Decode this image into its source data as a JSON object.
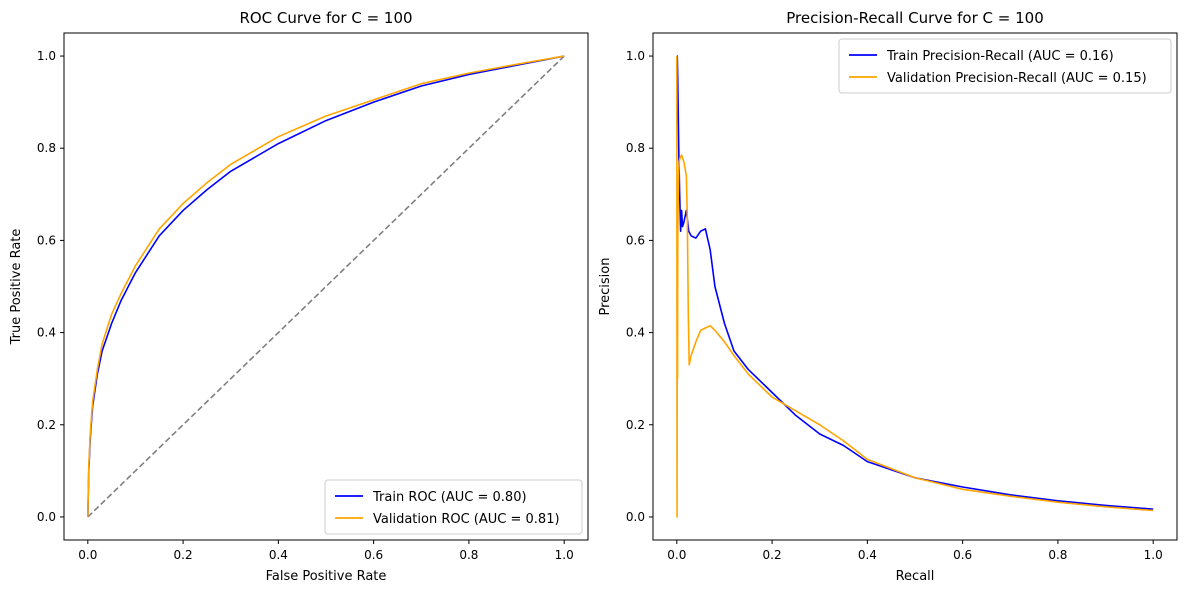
{
  "chart_data": [
    {
      "type": "line",
      "title": "ROC Curve for C = 100",
      "xlabel": "False Positive Rate",
      "ylabel": "True Positive Rate",
      "xlim": [
        -0.05,
        1.05
      ],
      "ylim": [
        -0.05,
        1.05
      ],
      "xticks": [
        0.0,
        0.2,
        0.4,
        0.6,
        0.8,
        1.0
      ],
      "yticks": [
        0.0,
        0.2,
        0.4,
        0.6,
        0.8,
        1.0
      ],
      "tick_labels_x": [
        "0.0",
        "0.2",
        "0.4",
        "0.6",
        "0.8",
        "1.0"
      ],
      "tick_labels_y": [
        "0.0",
        "0.2",
        "0.4",
        "0.6",
        "0.8",
        "1.0"
      ],
      "grid": false,
      "legend": "bottom-right",
      "series": [
        {
          "name": "Train ROC (AUC = 0.80)",
          "color": "#0000ff",
          "x": [
            0,
            0.002,
            0.005,
            0.01,
            0.02,
            0.03,
            0.05,
            0.07,
            0.1,
            0.15,
            0.2,
            0.25,
            0.3,
            0.4,
            0.5,
            0.6,
            0.7,
            0.8,
            0.9,
            1.0
          ],
          "y": [
            0,
            0.1,
            0.17,
            0.24,
            0.31,
            0.36,
            0.42,
            0.47,
            0.53,
            0.61,
            0.665,
            0.71,
            0.75,
            0.81,
            0.86,
            0.9,
            0.935,
            0.96,
            0.98,
            1.0
          ]
        },
        {
          "name": "Validation ROC (AUC = 0.81)",
          "color": "#ffa500",
          "x": [
            0,
            0.002,
            0.005,
            0.01,
            0.02,
            0.03,
            0.05,
            0.07,
            0.1,
            0.15,
            0.2,
            0.25,
            0.3,
            0.4,
            0.5,
            0.6,
            0.7,
            0.8,
            0.9,
            1.0
          ],
          "y": [
            0,
            0.11,
            0.18,
            0.25,
            0.32,
            0.375,
            0.44,
            0.485,
            0.545,
            0.625,
            0.68,
            0.725,
            0.765,
            0.825,
            0.87,
            0.905,
            0.94,
            0.963,
            0.982,
            1.0
          ]
        },
        {
          "name": "",
          "color": "#808080",
          "dashed": true,
          "x": [
            0,
            1
          ],
          "y": [
            0,
            1
          ]
        }
      ]
    },
    {
      "type": "line",
      "title": "Precision-Recall Curve for C = 100",
      "xlabel": "Recall",
      "ylabel": "Precision",
      "xlim": [
        -0.05,
        1.05
      ],
      "ylim": [
        -0.05,
        1.05
      ],
      "xticks": [
        0.0,
        0.2,
        0.4,
        0.6,
        0.8,
        1.0
      ],
      "yticks": [
        0.0,
        0.2,
        0.4,
        0.6,
        0.8,
        1.0
      ],
      "tick_labels_x": [
        "0.0",
        "0.2",
        "0.4",
        "0.6",
        "0.8",
        "1.0"
      ],
      "tick_labels_y": [
        "0.0",
        "0.2",
        "0.4",
        "0.6",
        "0.8",
        "1.0"
      ],
      "grid": false,
      "legend": "top-right",
      "series": [
        {
          "name": "Train Precision-Recall (AUC = 0.16)",
          "color": "#0000ff",
          "x": [
            0,
            0.001,
            0.002,
            0.004,
            0.006,
            0.008,
            0.01,
            0.012,
            0.015,
            0.02,
            0.025,
            0.03,
            0.04,
            0.05,
            0.06,
            0.07,
            0.08,
            0.1,
            0.12,
            0.15,
            0.2,
            0.25,
            0.3,
            0.35,
            0.4,
            0.5,
            0.6,
            0.7,
            0.8,
            0.9,
            1.0
          ],
          "y": [
            1.0,
            1.0,
            0.95,
            0.8,
            0.7,
            0.62,
            0.665,
            0.63,
            0.64,
            0.665,
            0.62,
            0.61,
            0.605,
            0.62,
            0.625,
            0.58,
            0.5,
            0.42,
            0.36,
            0.32,
            0.27,
            0.22,
            0.18,
            0.155,
            0.12,
            0.085,
            0.065,
            0.048,
            0.035,
            0.025,
            0.017
          ]
        },
        {
          "name": "Validation Precision-Recall (AUC = 0.15)",
          "color": "#ffa500",
          "x": [
            0,
            0.0005,
            0.001,
            0.0015,
            0.002,
            0.003,
            0.004,
            0.005,
            0.007,
            0.01,
            0.015,
            0.02,
            0.022,
            0.024,
            0.026,
            0.03,
            0.04,
            0.05,
            0.06,
            0.07,
            0.08,
            0.1,
            0.12,
            0.15,
            0.2,
            0.25,
            0.3,
            0.35,
            0.4,
            0.5,
            0.6,
            0.7,
            0.8,
            0.9,
            1.0
          ],
          "y": [
            1.0,
            0.0,
            0.5,
            0.3,
            0.6,
            0.7,
            0.75,
            0.77,
            0.78,
            0.785,
            0.77,
            0.74,
            0.65,
            0.45,
            0.33,
            0.35,
            0.38,
            0.405,
            0.41,
            0.415,
            0.405,
            0.38,
            0.35,
            0.31,
            0.26,
            0.23,
            0.2,
            0.165,
            0.125,
            0.085,
            0.06,
            0.045,
            0.032,
            0.022,
            0.014
          ]
        }
      ]
    }
  ]
}
